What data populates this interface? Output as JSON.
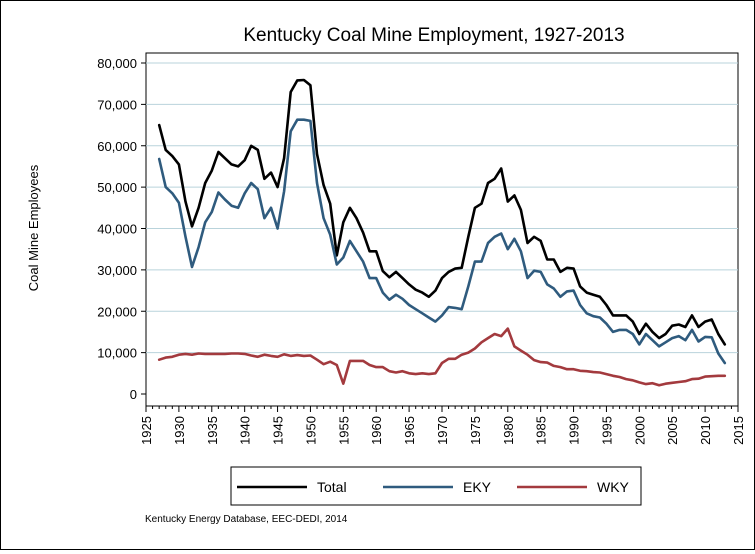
{
  "chart_data": {
    "type": "line",
    "title": "Kentucky Coal Mine Employment, 1927-2013",
    "xlabel": "",
    "ylabel": "Coal Mine Employees",
    "xlim": [
      1925,
      2015
    ],
    "ylim": [
      0,
      80000
    ],
    "x_ticks": [
      "1925",
      "1930",
      "1935",
      "1940",
      "1945",
      "1950",
      "1955",
      "1960",
      "1965",
      "1970",
      "1975",
      "1980",
      "1985",
      "1990",
      "1995",
      "2000",
      "2005",
      "2010",
      "2015"
    ],
    "y_ticks": [
      "0",
      "10,000",
      "20,000",
      "30,000",
      "40,000",
      "50,000",
      "60,000",
      "70,000",
      "80,000"
    ],
    "grid": "horizontal",
    "legend_position": "bottom",
    "source_note": "Kentucky Energy Database, EEC-DEDI, 2014",
    "x": [
      1927,
      1928,
      1929,
      1930,
      1931,
      1932,
      1933,
      1934,
      1935,
      1936,
      1937,
      1938,
      1939,
      1940,
      1941,
      1942,
      1943,
      1944,
      1945,
      1946,
      1947,
      1948,
      1949,
      1950,
      1951,
      1952,
      1953,
      1954,
      1955,
      1956,
      1957,
      1958,
      1959,
      1960,
      1961,
      1962,
      1963,
      1964,
      1965,
      1966,
      1967,
      1968,
      1969,
      1970,
      1971,
      1972,
      1973,
      1974,
      1975,
      1976,
      1977,
      1978,
      1979,
      1980,
      1981,
      1982,
      1983,
      1984,
      1985,
      1986,
      1987,
      1988,
      1989,
      1990,
      1991,
      1992,
      1993,
      1994,
      1995,
      1996,
      1997,
      1998,
      1999,
      2000,
      2001,
      2002,
      2003,
      2004,
      2005,
      2006,
      2007,
      2008,
      2009,
      2010,
      2011,
      2012,
      2013
    ],
    "series": [
      {
        "name": "Total",
        "color": "#000000",
        "values": [
          65000,
          59000,
          57500,
          55500,
          46500,
          40500,
          45000,
          51000,
          54000,
          58500,
          57000,
          55500,
          55000,
          56500,
          60000,
          59000,
          52000,
          53500,
          50000,
          57000,
          73000,
          75800,
          75900,
          74600,
          58000,
          50500,
          46000,
          33500,
          41500,
          45000,
          42500,
          39000,
          34500,
          34500,
          29700,
          28200,
          29500,
          28000,
          26500,
          25200,
          24500,
          23500,
          25000,
          28000,
          29500,
          30300,
          30500,
          38000,
          45000,
          46000,
          51000,
          52000,
          54500,
          46500,
          48000,
          44500,
          36500,
          38000,
          37000,
          32500,
          32500,
          29500,
          30500,
          30300,
          26000,
          24500,
          24000,
          23500,
          21500,
          19000,
          19000,
          19000,
          17500,
          14500,
          17000,
          15000,
          13500,
          14500,
          16500,
          16800,
          16200,
          19000,
          16200,
          17500,
          18000,
          14500,
          12000
        ]
      },
      {
        "name": "EKY",
        "color": "#2f5b7e",
        "values": [
          56800,
          50000,
          48500,
          46200,
          38000,
          30700,
          35500,
          41500,
          44000,
          48700,
          47000,
          45500,
          45000,
          48500,
          51000,
          49500,
          42500,
          45000,
          40000,
          49000,
          63500,
          66300,
          66300,
          66000,
          51000,
          42500,
          38500,
          31300,
          33000,
          37000,
          34500,
          32000,
          28000,
          28000,
          24500,
          22800,
          24000,
          23000,
          21500,
          20500,
          19500,
          18500,
          17500,
          19000,
          21000,
          20800,
          20500,
          26000,
          32000,
          32000,
          36500,
          38000,
          38800,
          35000,
          37500,
          34500,
          28000,
          29800,
          29500,
          26500,
          25500,
          23500,
          24800,
          25000,
          21500,
          19500,
          18800,
          18500,
          17000,
          15000,
          15500,
          15500,
          14500,
          12000,
          14500,
          13000,
          11500,
          12500,
          13500,
          14000,
          13000,
          15500,
          12700,
          13800,
          13700,
          9800,
          7500
        ]
      },
      {
        "name": "WKY",
        "color": "#a33a3e",
        "values": [
          8300,
          8800,
          9000,
          9500,
          9700,
          9500,
          9800,
          9700,
          9700,
          9700,
          9700,
          9800,
          9800,
          9700,
          9300,
          9000,
          9500,
          9200,
          9000,
          9600,
          9200,
          9400,
          9200,
          9300,
          8300,
          7200,
          7800,
          7000,
          2500,
          8000,
          8000,
          8000,
          7000,
          6500,
          6500,
          5500,
          5200,
          5500,
          5000,
          4800,
          5000,
          4800,
          5000,
          7500,
          8500,
          8500,
          9500,
          10000,
          11000,
          12500,
          13500,
          14500,
          14000,
          15800,
          11500,
          10500,
          9500,
          8200,
          7700,
          7600,
          6800,
          6500,
          6000,
          6000,
          5600,
          5500,
          5300,
          5200,
          4800,
          4400,
          4100,
          3600,
          3300,
          2800,
          2400,
          2600,
          2100,
          2500,
          2700,
          2900,
          3100,
          3600,
          3700,
          4200,
          4300,
          4400,
          4400
        ]
      }
    ]
  }
}
